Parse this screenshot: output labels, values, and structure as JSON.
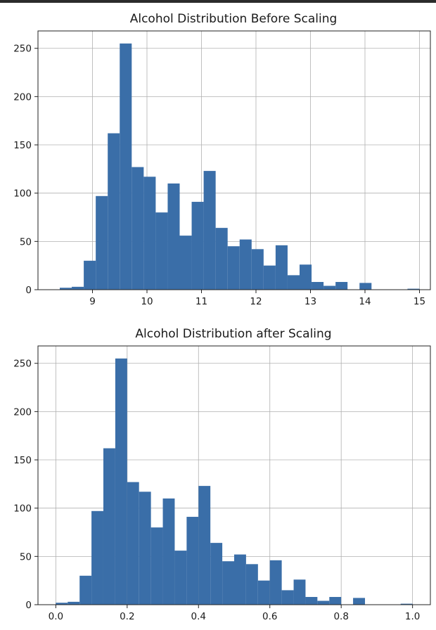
{
  "chart_data": [
    {
      "type": "bar",
      "title": "Alcohol Distribution Before Scaling",
      "xlabel": "",
      "ylabel": "",
      "xlim": [
        8.0,
        15.2
      ],
      "ylim": [
        0,
        268
      ],
      "xticks": [
        "9",
        "10",
        "11",
        "12",
        "13",
        "14",
        "15"
      ],
      "xtick_values": [
        9,
        10,
        11,
        12,
        13,
        14,
        15
      ],
      "yticks": [
        "0",
        "50",
        "100",
        "150",
        "200",
        "250"
      ],
      "ytick_values": [
        0,
        50,
        100,
        150,
        200,
        250
      ],
      "grid": true,
      "bar_color": "#3a6ea8",
      "bins": [
        {
          "x0": 8.4,
          "x1": 8.62,
          "value": 2
        },
        {
          "x0": 8.62,
          "x1": 8.84,
          "value": 3
        },
        {
          "x0": 8.84,
          "x1": 9.06,
          "value": 30
        },
        {
          "x0": 9.06,
          "x1": 9.28,
          "value": 97
        },
        {
          "x0": 9.28,
          "x1": 9.5,
          "value": 162
        },
        {
          "x0": 9.5,
          "x1": 9.72,
          "value": 255
        },
        {
          "x0": 9.72,
          "x1": 9.94,
          "value": 127
        },
        {
          "x0": 9.94,
          "x1": 10.16,
          "value": 117
        },
        {
          "x0": 10.16,
          "x1": 10.38,
          "value": 80
        },
        {
          "x0": 10.38,
          "x1": 10.6,
          "value": 110
        },
        {
          "x0": 10.6,
          "x1": 10.82,
          "value": 56
        },
        {
          "x0": 10.82,
          "x1": 11.04,
          "value": 91
        },
        {
          "x0": 11.04,
          "x1": 11.26,
          "value": 123
        },
        {
          "x0": 11.26,
          "x1": 11.48,
          "value": 64
        },
        {
          "x0": 11.48,
          "x1": 11.7,
          "value": 45
        },
        {
          "x0": 11.7,
          "x1": 11.92,
          "value": 52
        },
        {
          "x0": 11.92,
          "x1": 12.14,
          "value": 42
        },
        {
          "x0": 12.14,
          "x1": 12.36,
          "value": 25
        },
        {
          "x0": 12.36,
          "x1": 12.58,
          "value": 46
        },
        {
          "x0": 12.58,
          "x1": 12.8,
          "value": 15
        },
        {
          "x0": 12.8,
          "x1": 13.02,
          "value": 26
        },
        {
          "x0": 13.02,
          "x1": 13.24,
          "value": 8
        },
        {
          "x0": 13.24,
          "x1": 13.46,
          "value": 4
        },
        {
          "x0": 13.46,
          "x1": 13.68,
          "value": 8
        },
        {
          "x0": 13.68,
          "x1": 13.9,
          "value": 0
        },
        {
          "x0": 13.9,
          "x1": 14.12,
          "value": 7
        },
        {
          "x0": 14.12,
          "x1": 14.34,
          "value": 0
        },
        {
          "x0": 14.34,
          "x1": 14.56,
          "value": 0
        },
        {
          "x0": 14.56,
          "x1": 14.78,
          "value": 0
        },
        {
          "x0": 14.78,
          "x1": 15.0,
          "value": 1
        }
      ]
    },
    {
      "type": "bar",
      "title": "Alcohol Distribution after Scaling",
      "xlabel": "",
      "ylabel": "",
      "xlim": [
        -0.05,
        1.05
      ],
      "ylim": [
        0,
        268
      ],
      "xticks": [
        "0.0",
        "0.2",
        "0.4",
        "0.6",
        "0.8",
        "1.0"
      ],
      "xtick_values": [
        0.0,
        0.2,
        0.4,
        0.6,
        0.8,
        1.0
      ],
      "yticks": [
        "0",
        "50",
        "100",
        "150",
        "200",
        "250"
      ],
      "ytick_values": [
        0,
        50,
        100,
        150,
        200,
        250
      ],
      "grid": true,
      "bar_color": "#3a6ea8",
      "bins": [
        {
          "x0": 0.0,
          "x1": 0.0333,
          "value": 2
        },
        {
          "x0": 0.0333,
          "x1": 0.0667,
          "value": 3
        },
        {
          "x0": 0.0667,
          "x1": 0.1,
          "value": 30
        },
        {
          "x0": 0.1,
          "x1": 0.1333,
          "value": 97
        },
        {
          "x0": 0.1333,
          "x1": 0.1667,
          "value": 162
        },
        {
          "x0": 0.1667,
          "x1": 0.2,
          "value": 255
        },
        {
          "x0": 0.2,
          "x1": 0.2333,
          "value": 127
        },
        {
          "x0": 0.2333,
          "x1": 0.2667,
          "value": 117
        },
        {
          "x0": 0.2667,
          "x1": 0.3,
          "value": 80
        },
        {
          "x0": 0.3,
          "x1": 0.3333,
          "value": 110
        },
        {
          "x0": 0.3333,
          "x1": 0.3667,
          "value": 56
        },
        {
          "x0": 0.3667,
          "x1": 0.4,
          "value": 91
        },
        {
          "x0": 0.4,
          "x1": 0.4333,
          "value": 123
        },
        {
          "x0": 0.4333,
          "x1": 0.4667,
          "value": 64
        },
        {
          "x0": 0.4667,
          "x1": 0.5,
          "value": 45
        },
        {
          "x0": 0.5,
          "x1": 0.5333,
          "value": 52
        },
        {
          "x0": 0.5333,
          "x1": 0.5667,
          "value": 42
        },
        {
          "x0": 0.5667,
          "x1": 0.6,
          "value": 25
        },
        {
          "x0": 0.6,
          "x1": 0.6333,
          "value": 46
        },
        {
          "x0": 0.6333,
          "x1": 0.6667,
          "value": 15
        },
        {
          "x0": 0.6667,
          "x1": 0.7,
          "value": 26
        },
        {
          "x0": 0.7,
          "x1": 0.7333,
          "value": 8
        },
        {
          "x0": 0.7333,
          "x1": 0.7667,
          "value": 4
        },
        {
          "x0": 0.7667,
          "x1": 0.8,
          "value": 8
        },
        {
          "x0": 0.8,
          "x1": 0.8333,
          "value": 0
        },
        {
          "x0": 0.8333,
          "x1": 0.8667,
          "value": 7
        },
        {
          "x0": 0.8667,
          "x1": 0.9,
          "value": 0
        },
        {
          "x0": 0.9,
          "x1": 0.9333,
          "value": 0
        },
        {
          "x0": 0.9333,
          "x1": 0.9667,
          "value": 0
        },
        {
          "x0": 0.9667,
          "x1": 1.0,
          "value": 1
        }
      ]
    }
  ]
}
